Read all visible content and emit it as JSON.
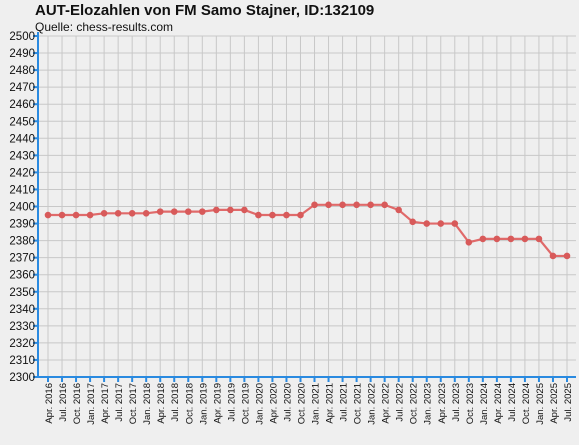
{
  "chart_data": {
    "type": "line",
    "title": "AUT-Elozahlen von FM Samo Stajner, ID:132109",
    "subtitle": "Quelle: chess-results.com",
    "xlabel": "",
    "ylabel": "",
    "ylim": [
      2300,
      2500
    ],
    "ytick_step": 10,
    "grid": true,
    "legend": "none",
    "categories": [
      "Apr. 2016",
      "Jul. 2016",
      "Oct. 2016",
      "Jan. 2017",
      "Apr. 2017",
      "Jul. 2017",
      "Oct. 2017",
      "Jan. 2018",
      "Apr. 2018",
      "Jul. 2018",
      "Oct. 2018",
      "Jan. 2019",
      "Apr. 2019",
      "Jul. 2019",
      "Oct. 2019",
      "Jan. 2020",
      "Apr. 2020",
      "Jul. 2020",
      "Oct. 2020",
      "Jan. 2021",
      "Apr. 2021",
      "Jul. 2021",
      "Oct. 2021",
      "Jan. 2022",
      "Apr. 2022",
      "Jul. 2022",
      "Oct. 2022",
      "Jan. 2023",
      "Apr. 2023",
      "Jul. 2023",
      "Oct. 2023",
      "Jan. 2024",
      "Apr. 2024",
      "Jul. 2024",
      "Oct. 2024",
      "Jan. 2025",
      "Apr. 2025",
      "Jul. 2025"
    ],
    "series": [
      {
        "values": [
          2395,
          2395,
          2395,
          2395,
          2396,
          2396,
          2396,
          2396,
          2397,
          2397,
          2397,
          2397,
          2398,
          2398,
          2398,
          2395,
          2395,
          2395,
          2395,
          2401,
          2401,
          2401,
          2401,
          2401,
          2401,
          2398,
          2391,
          2390,
          2390,
          2390,
          2379,
          2381,
          2381,
          2381,
          2381,
          2381,
          2371,
          2371
        ]
      }
    ],
    "colors": {
      "line": "#e06a6a",
      "marker": "#d85a5a",
      "grid": "#c8c8c8",
      "axis": "#2a8ae0",
      "background": "#efefef",
      "text": "#111111"
    }
  }
}
